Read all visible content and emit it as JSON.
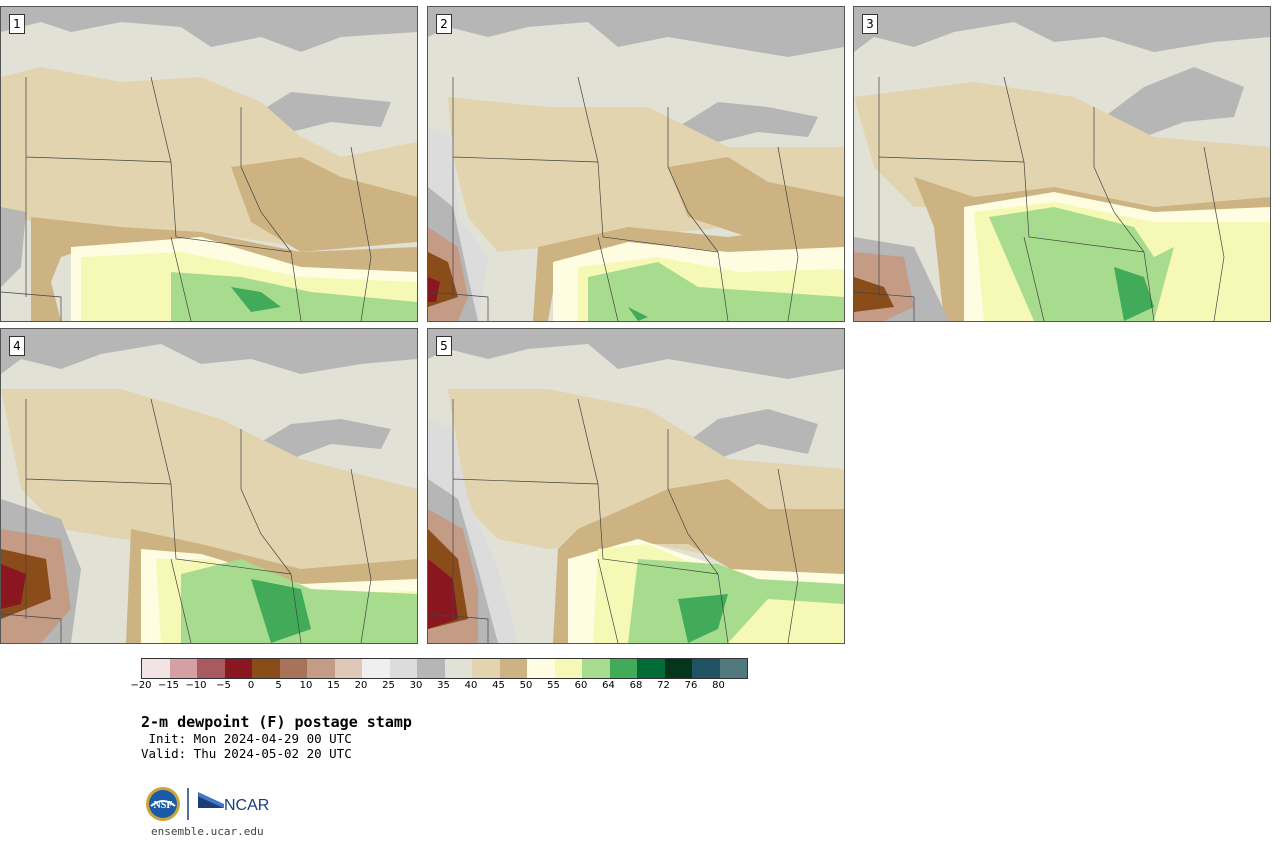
{
  "panels": [
    {
      "label": "1"
    },
    {
      "label": "2"
    },
    {
      "label": "3"
    },
    {
      "label": "4"
    },
    {
      "label": "5"
    }
  ],
  "legend": {
    "ticks": [
      "−20",
      "−15",
      "−10",
      "−5",
      "0",
      "5",
      "10",
      "15",
      "20",
      "25",
      "30",
      "35",
      "40",
      "45",
      "50",
      "55",
      "60",
      "64",
      "68",
      "72",
      "76",
      "80"
    ],
    "colors": [
      "#f2e4e4",
      "#d4a0a4",
      "#a85a60",
      "#8a1620",
      "#8a4c18",
      "#a9735a",
      "#c49c86",
      "#e0c8b8",
      "#efefef",
      "#dcdcdc",
      "#b6b6b6",
      "#e1e1d6",
      "#e2d4ae",
      "#cdb381",
      "#fffde1",
      "#f6f9b6",
      "#a7dc8e",
      "#42ab5a",
      "#016c35",
      "#03361a",
      "#1f5262",
      "#52797e"
    ]
  },
  "title": "2-m dewpoint (F) postage stamp",
  "init": " Init: Mon 2024-04-29 00 UTC",
  "valid": "Valid: Thu 2024-05-02 20 UTC",
  "footer": {
    "url": "ensemble.ucar.edu",
    "logo_left": "NSF",
    "logo_right": "NCAR"
  }
}
